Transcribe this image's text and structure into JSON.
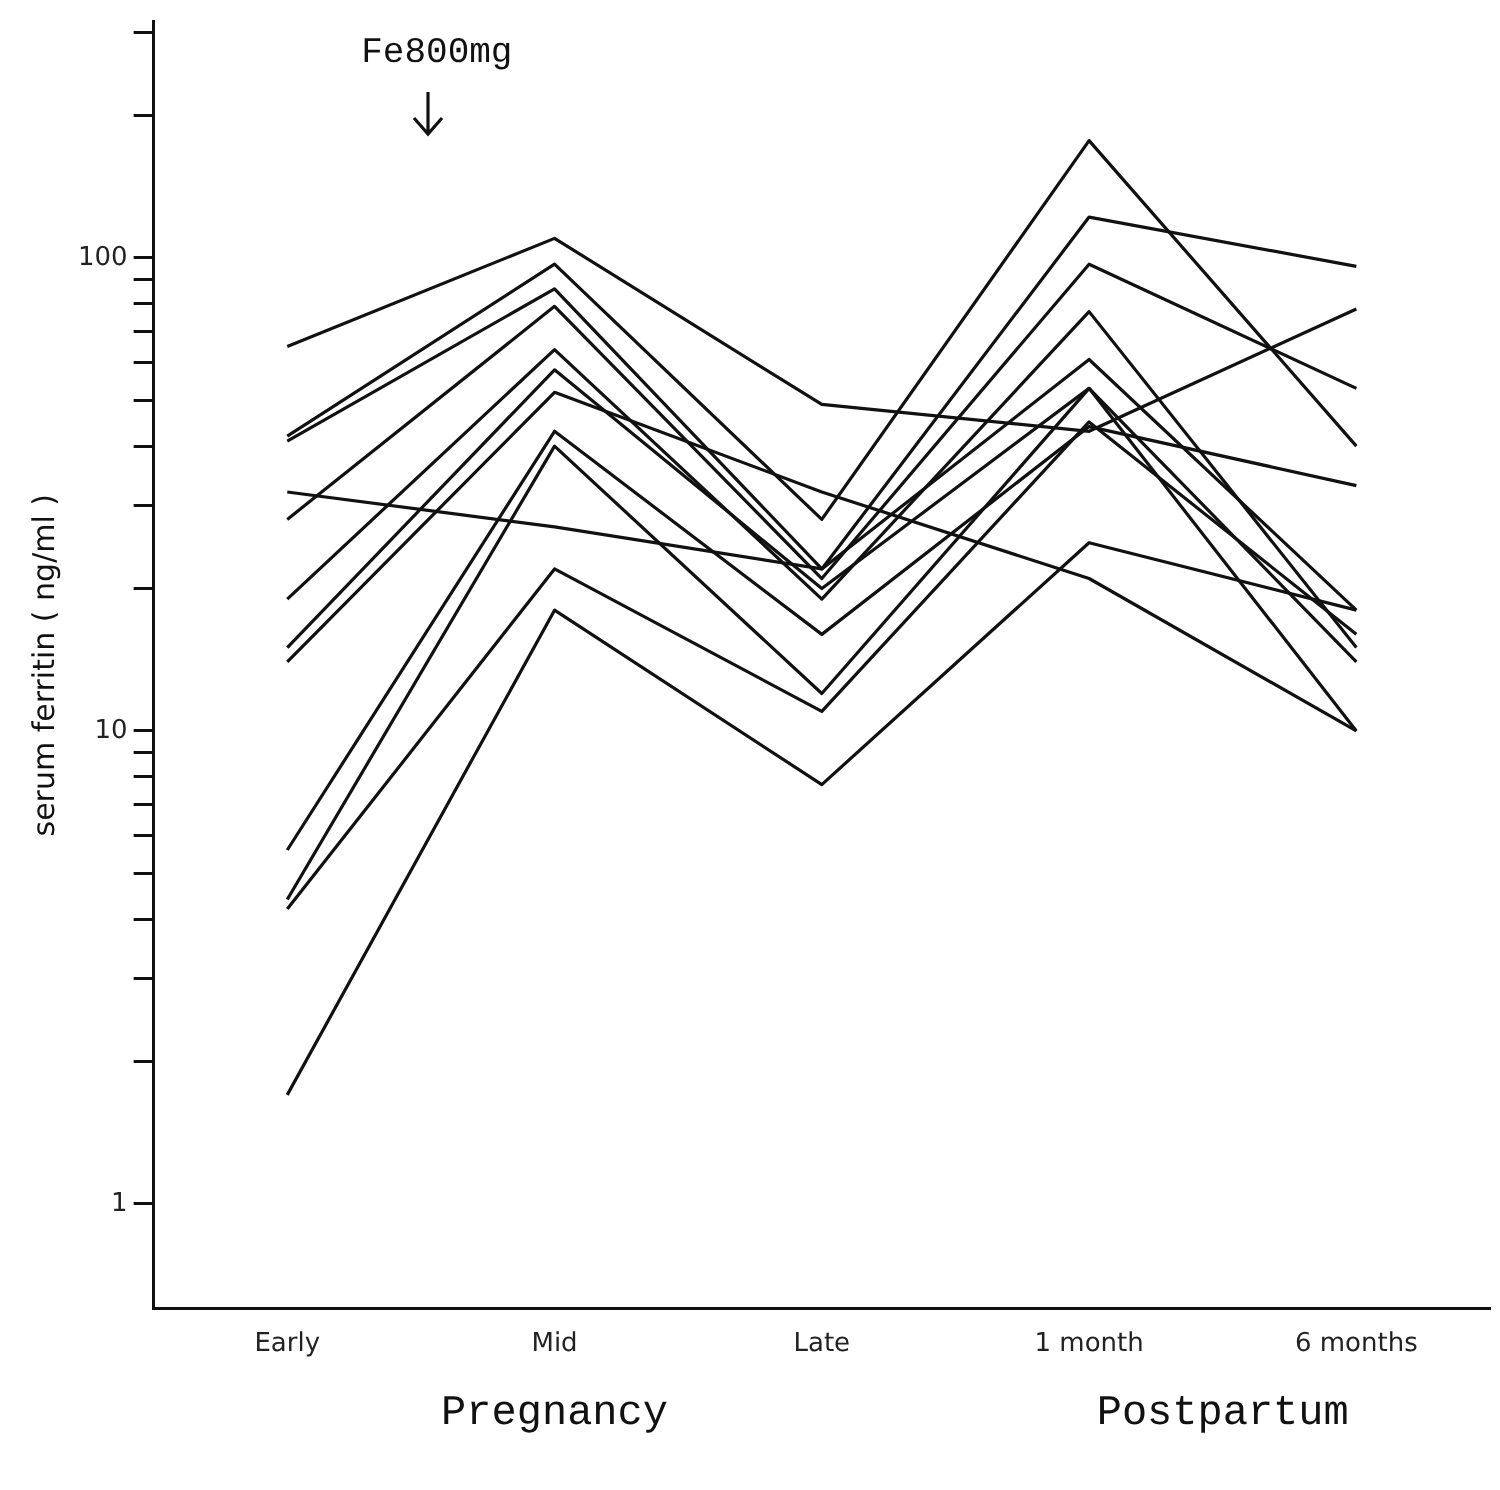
{
  "chart_data": {
    "type": "line",
    "ylabel": "serum ferritin ( ng/ml )",
    "categories": [
      "Early",
      "Mid",
      "Late",
      "1 month",
      "6 months"
    ],
    "annotations": [
      "Fe800mg",
      "Pregnancy",
      "Postpartum"
    ],
    "log": true,
    "ylim": [
      0.62,
      316
    ],
    "yticks": [
      1,
      {
        "value": 2,
        "label": null
      },
      {
        "value": 3,
        "label": null
      },
      {
        "value": 4,
        "label": null
      },
      {
        "value": 5,
        "label": null
      },
      {
        "value": 6,
        "label": null
      },
      {
        "value": 7,
        "label": null
      },
      {
        "value": 8,
        "label": null
      },
      {
        "value": 9,
        "label": null
      },
      10,
      {
        "value": 20,
        "label": null
      },
      {
        "value": 30,
        "label": null
      },
      {
        "value": 40,
        "label": null
      },
      {
        "value": 50,
        "label": null
      },
      {
        "value": 60,
        "label": null
      },
      {
        "value": 70,
        "label": null
      },
      {
        "value": 80,
        "label": null
      },
      {
        "value": 90,
        "label": null
      },
      100,
      {
        "value": 200,
        "label": null
      },
      {
        "value": 300,
        "label": null
      }
    ],
    "grid": false,
    "legend": false,
    "marker": "none",
    "line_style": "solid",
    "series": [
      {
        "color": "#111111",
        "values": [
          65,
          110,
          49,
          43,
          78
        ]
      },
      {
        "color": "#111111",
        "values": [
          42,
          97,
          28,
          177,
          40
        ]
      },
      {
        "color": "#111111",
        "values": [
          41,
          86,
          22,
          122,
          96
        ]
      },
      {
        "color": "#111111",
        "values": [
          28,
          79,
          21,
          97,
          53
        ]
      },
      {
        "color": "#111111",
        "values": [
          32,
          27,
          22,
          61,
          18
        ]
      },
      {
        "color": "#111111",
        "values": [
          19,
          64,
          19,
          77,
          15
        ]
      },
      {
        "color": "#111111",
        "values": [
          15,
          58,
          20,
          53,
          14
        ]
      },
      {
        "color": "#111111",
        "values": [
          14,
          52,
          32,
          21,
          10
        ]
      },
      {
        "color": "#111111",
        "values": [
          5.6,
          43,
          16,
          44,
          33
        ]
      },
      {
        "color": "#111111",
        "values": [
          4.4,
          40,
          12,
          53,
          10
        ]
      },
      {
        "color": "#111111",
        "values": [
          4.2,
          22,
          11,
          45,
          16
        ]
      },
      {
        "color": "#111111",
        "values": [
          1.7,
          18,
          7.7,
          25,
          18
        ]
      }
    ]
  }
}
